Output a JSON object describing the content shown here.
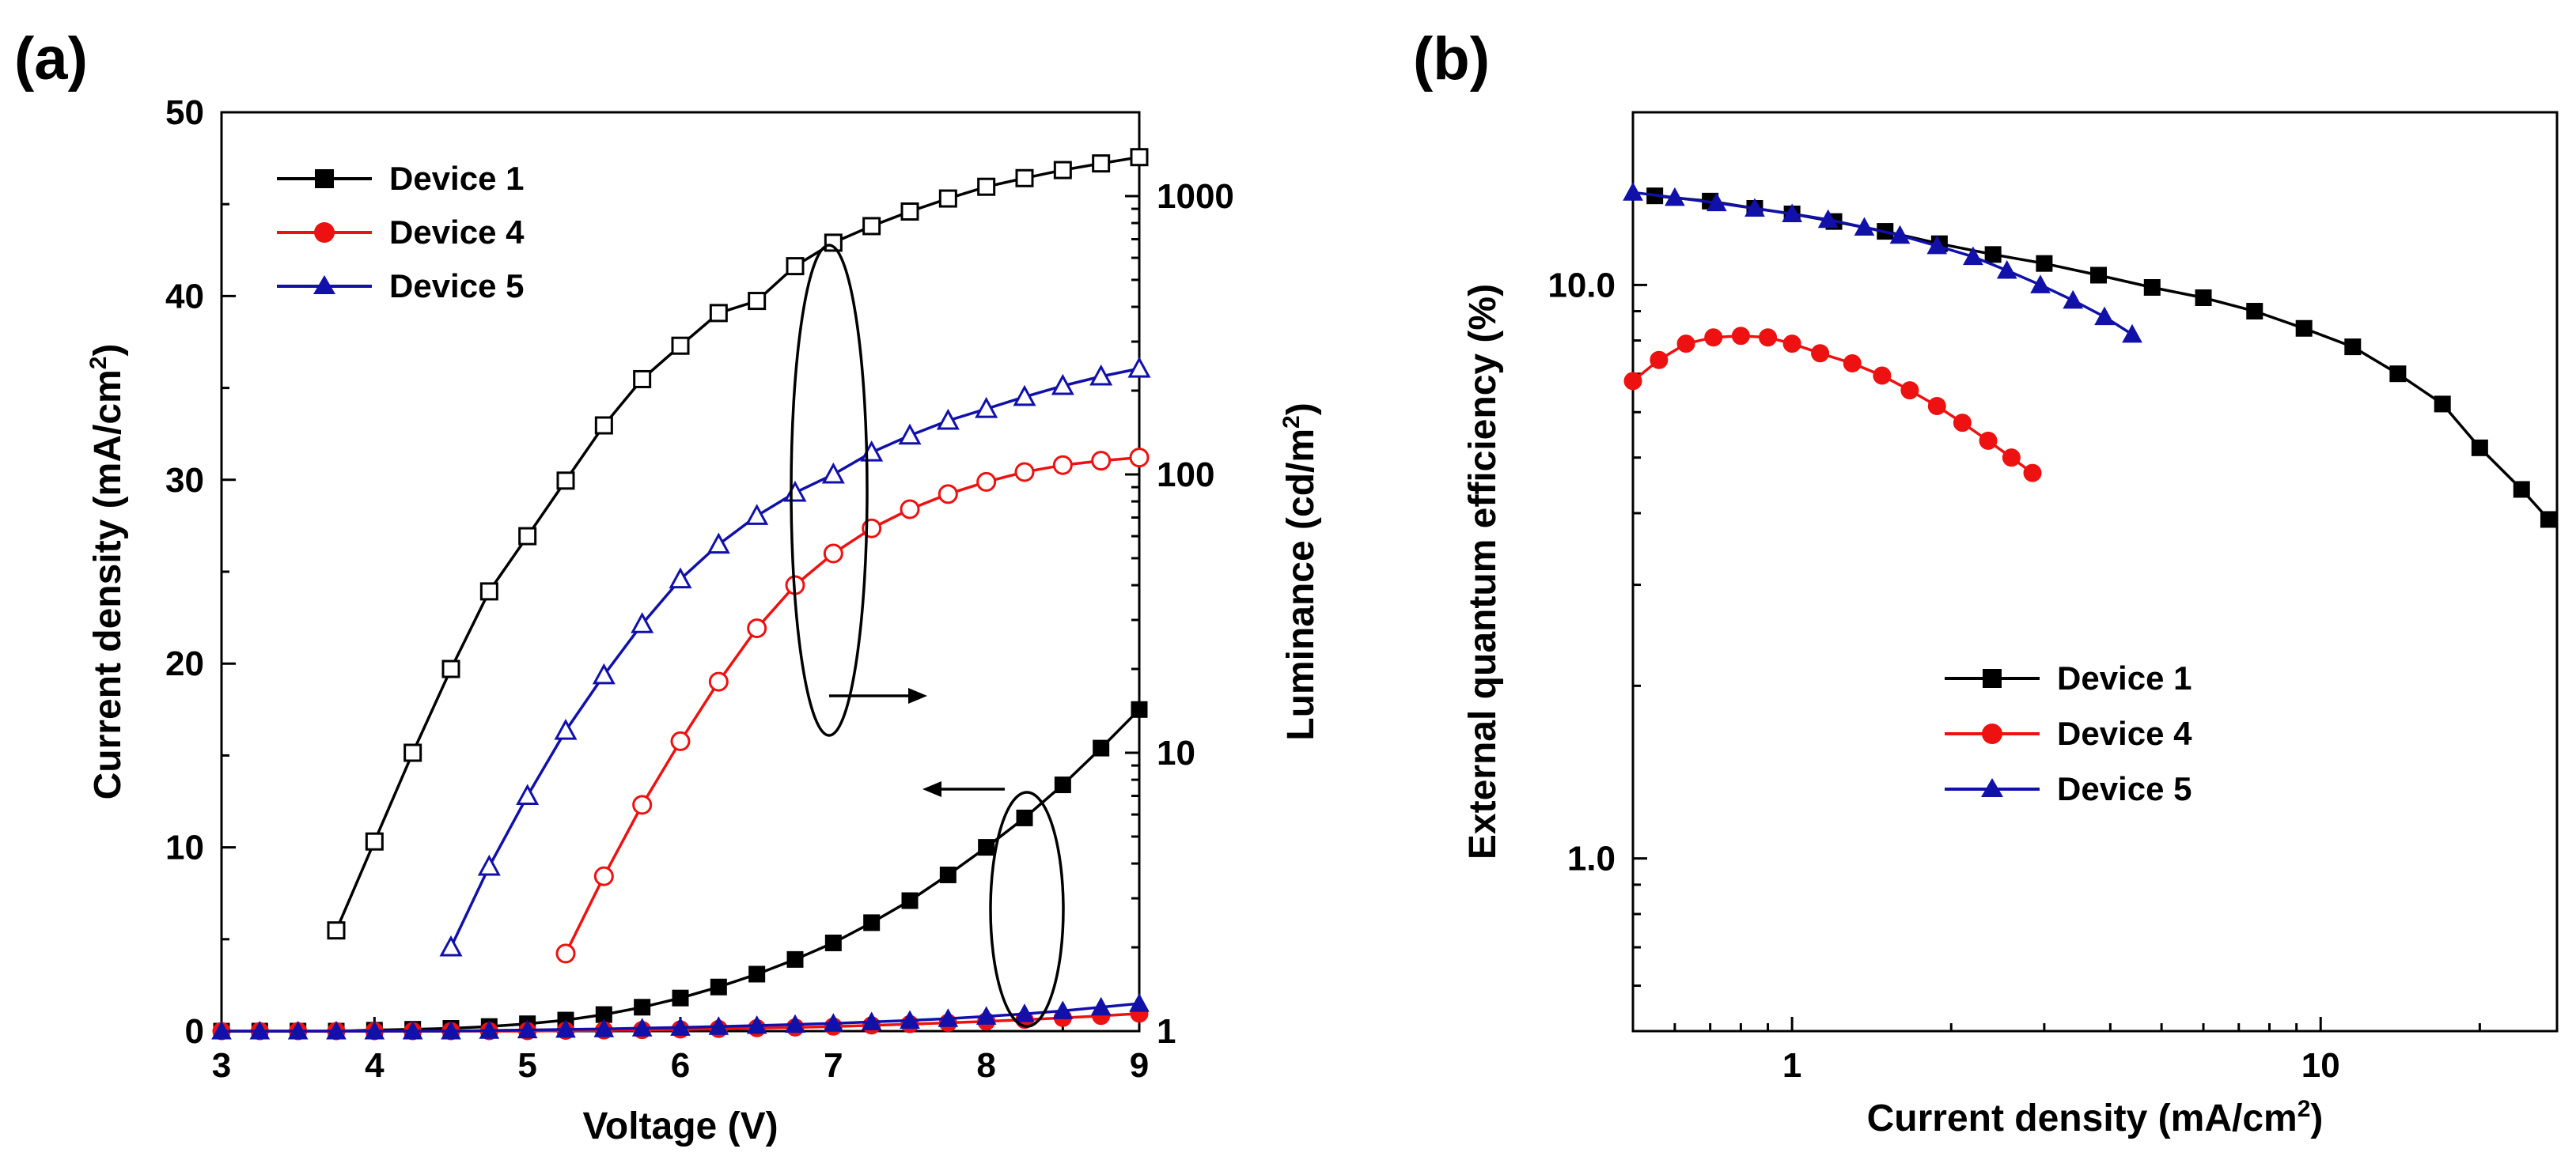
{
  "chart_data": [
    {
      "panel": "(a)",
      "type": "line",
      "title": "",
      "xlabel": "Voltage (V)",
      "ylabel": "Current density (mA/cm²)",
      "ylabel_parts": [
        "Current density (mA/cm",
        "2",
        ")"
      ],
      "y2label": "Luminance (cd/m²)",
      "y2label_parts": [
        "Luminance (cd/m",
        "2",
        ")"
      ],
      "xlim": [
        3,
        9
      ],
      "ylim": [
        0,
        50
      ],
      "y2lim": [
        1,
        2000
      ],
      "y2scale": "log",
      "xticks": [
        "3",
        "4",
        "5",
        "6",
        "7",
        "8",
        "9"
      ],
      "yticks": [
        "0",
        "10",
        "20",
        "30",
        "40",
        "50"
      ],
      "y2ticks": [
        "1",
        "10",
        "100",
        "1000"
      ],
      "legend_position": "top-left",
      "grid": false,
      "series": [
        {
          "name": "Device 1",
          "color": "#000000",
          "marker": "square",
          "kind": "current",
          "x": [
            3,
            3.25,
            3.5,
            3.75,
            4,
            4.25,
            4.5,
            4.75,
            5,
            5.25,
            5.5,
            5.75,
            6,
            6.25,
            6.5,
            6.75,
            7,
            7.25,
            7.5,
            7.75,
            8,
            8.25,
            8.5,
            8.75,
            9
          ],
          "y": [
            0,
            0,
            0,
            0,
            0.05,
            0.1,
            0.15,
            0.25,
            0.4,
            0.6,
            0.9,
            1.3,
            1.8,
            2.4,
            3.1,
            3.9,
            4.8,
            5.9,
            7.1,
            8.5,
            10.0,
            11.6,
            13.4,
            15.4,
            17.5
          ]
        },
        {
          "name": "Device 1",
          "color": "#000000",
          "marker": "square-open",
          "kind": "luminance",
          "x": [
            3.75,
            4,
            4.25,
            4.5,
            4.75,
            5,
            5.25,
            5.5,
            5.75,
            6,
            6.25,
            6.5,
            6.75,
            7,
            7.25,
            7.5,
            7.75,
            8,
            8.25,
            8.5,
            8.75,
            9
          ],
          "y": [
            2.3,
            4.8,
            10,
            20,
            38,
            60,
            95,
            150,
            220,
            290,
            380,
            420,
            560,
            680,
            780,
            880,
            980,
            1080,
            1160,
            1240,
            1310,
            1380
          ]
        },
        {
          "name": "Device 4",
          "color": "#ee1111",
          "marker": "circle",
          "kind": "current",
          "x": [
            3,
            3.25,
            3.5,
            3.75,
            4,
            4.25,
            4.5,
            4.75,
            5,
            5.25,
            5.5,
            5.75,
            6,
            6.25,
            6.5,
            6.75,
            7,
            7.25,
            7.5,
            7.75,
            8,
            8.25,
            8.5,
            8.75,
            9
          ],
          "y": [
            0,
            0,
            0,
            0,
            0,
            0,
            0,
            0,
            0,
            0.02,
            0.04,
            0.06,
            0.09,
            0.12,
            0.16,
            0.2,
            0.25,
            0.31,
            0.38,
            0.45,
            0.53,
            0.62,
            0.72,
            0.83,
            0.95
          ]
        },
        {
          "name": "Device 4",
          "color": "#ee1111",
          "marker": "circle-open",
          "kind": "luminance",
          "x": [
            5.25,
            5.5,
            5.75,
            6,
            6.25,
            6.5,
            6.75,
            7,
            7.25,
            7.5,
            7.75,
            8,
            8.25,
            8.5,
            8.75,
            9
          ],
          "y": [
            1.9,
            3.6,
            6.5,
            11,
            18,
            28,
            40,
            52,
            64,
            75,
            85,
            94,
            102,
            108,
            112,
            115
          ]
        },
        {
          "name": "Device 5",
          "color": "#1111aa",
          "marker": "triangle",
          "kind": "current",
          "x": [
            3,
            3.25,
            3.5,
            3.75,
            4,
            4.25,
            4.5,
            4.75,
            5,
            5.25,
            5.5,
            5.75,
            6,
            6.25,
            6.5,
            6.75,
            7,
            7.25,
            7.5,
            7.75,
            8,
            8.25,
            8.5,
            8.75,
            9
          ],
          "y": [
            0,
            0,
            0,
            0,
            0,
            0,
            0,
            0.03,
            0.06,
            0.09,
            0.12,
            0.16,
            0.2,
            0.25,
            0.3,
            0.36,
            0.42,
            0.5,
            0.58,
            0.68,
            0.8,
            0.94,
            1.1,
            1.3,
            1.5
          ]
        },
        {
          "name": "Device 5",
          "color": "#1111aa",
          "marker": "triangle-open",
          "kind": "luminance",
          "x": [
            4.5,
            4.75,
            5,
            5.25,
            5.5,
            5.75,
            6,
            6.25,
            6.5,
            6.75,
            7,
            7.25,
            7.5,
            7.75,
            8,
            8.25,
            8.5,
            8.75,
            9
          ],
          "y": [
            2.0,
            3.9,
            7,
            12,
            19,
            29,
            42,
            56,
            71,
            86,
            100,
            120,
            138,
            156,
            172,
            190,
            208,
            225,
            240
          ]
        }
      ]
    },
    {
      "panel": "(b)",
      "type": "line",
      "title": "",
      "xlabel": "Current density (mA/cm²)",
      "xlabel_parts": [
        "Current density (mA/cm",
        "2",
        ")"
      ],
      "ylabel": "External quantum efficiency (%)",
      "xscale": "log",
      "yscale": "log",
      "xlim": [
        0.5,
        28
      ],
      "ylim": [
        0.5,
        20
      ],
      "xticks": [
        "1",
        "10"
      ],
      "yticks": [
        "1.0",
        "10.0"
      ],
      "legend_position": "center",
      "grid": false,
      "series": [
        {
          "name": "Device 1",
          "color": "#000000",
          "marker": "square",
          "x": [
            0.55,
            0.7,
            0.85,
            1.0,
            1.2,
            1.5,
            1.9,
            2.4,
            3.0,
            3.8,
            4.8,
            6.0,
            7.5,
            9.3,
            11.5,
            14,
            17,
            20,
            24,
            27
          ],
          "y": [
            14.3,
            14.0,
            13.6,
            13.3,
            12.9,
            12.4,
            11.8,
            11.3,
            10.9,
            10.4,
            9.9,
            9.5,
            9.0,
            8.4,
            7.8,
            7.0,
            6.2,
            5.2,
            4.4,
            3.9
          ]
        },
        {
          "name": "Device 4",
          "color": "#ee1111",
          "marker": "circle",
          "x": [
            0.5,
            0.56,
            0.63,
            0.71,
            0.8,
            0.9,
            1.0,
            1.13,
            1.3,
            1.48,
            1.67,
            1.88,
            2.1,
            2.35,
            2.6,
            2.85
          ],
          "y": [
            6.8,
            7.4,
            7.9,
            8.1,
            8.15,
            8.1,
            7.9,
            7.6,
            7.3,
            6.95,
            6.55,
            6.15,
            5.75,
            5.35,
            5.0,
            4.7
          ]
        },
        {
          "name": "Device 5",
          "color": "#1111aa",
          "marker": "triangle",
          "x": [
            0.5,
            0.6,
            0.72,
            0.85,
            1.0,
            1.17,
            1.37,
            1.6,
            1.88,
            2.2,
            2.55,
            2.95,
            3.4,
            3.9,
            4.4
          ],
          "y": [
            14.5,
            14.2,
            13.9,
            13.6,
            13.3,
            13.0,
            12.6,
            12.2,
            11.7,
            11.2,
            10.6,
            10.0,
            9.4,
            8.8,
            8.2
          ]
        }
      ]
    }
  ]
}
